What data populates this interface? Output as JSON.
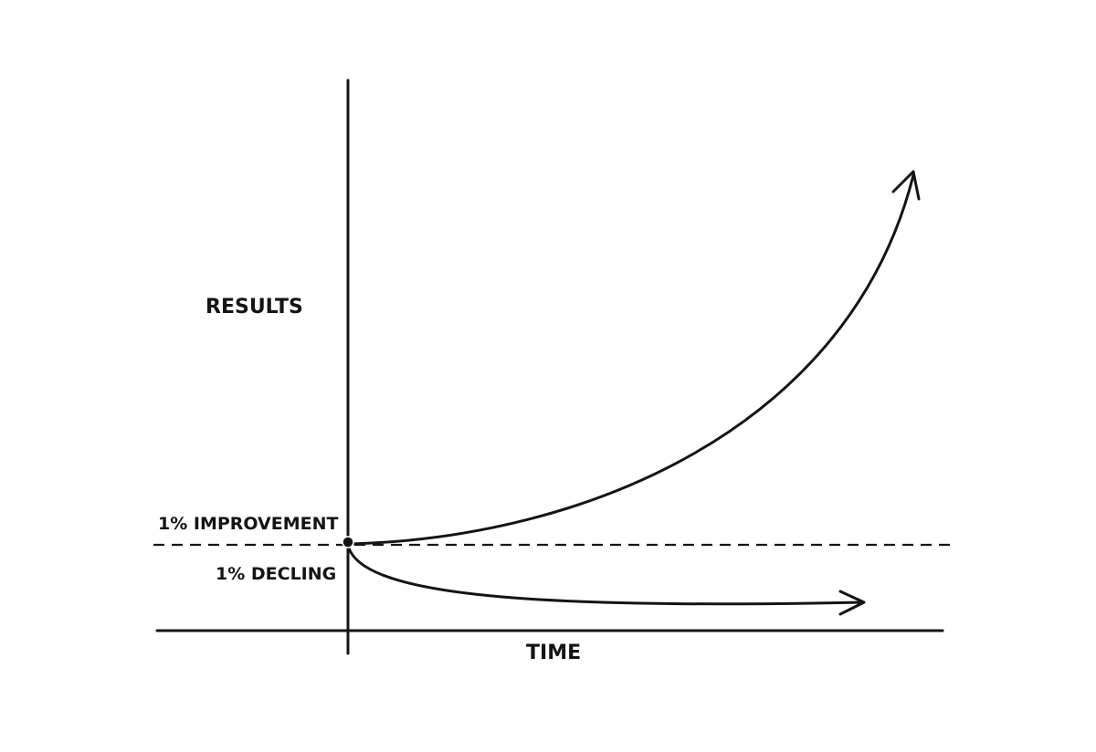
{
  "labels": {
    "y_axis": "RESULTS",
    "x_axis": "TIME",
    "improvement": "1% IMPROVEMENT",
    "decline": "1% DECLING"
  },
  "colors": {
    "ink": "#141414",
    "background": "#ffffff"
  }
}
